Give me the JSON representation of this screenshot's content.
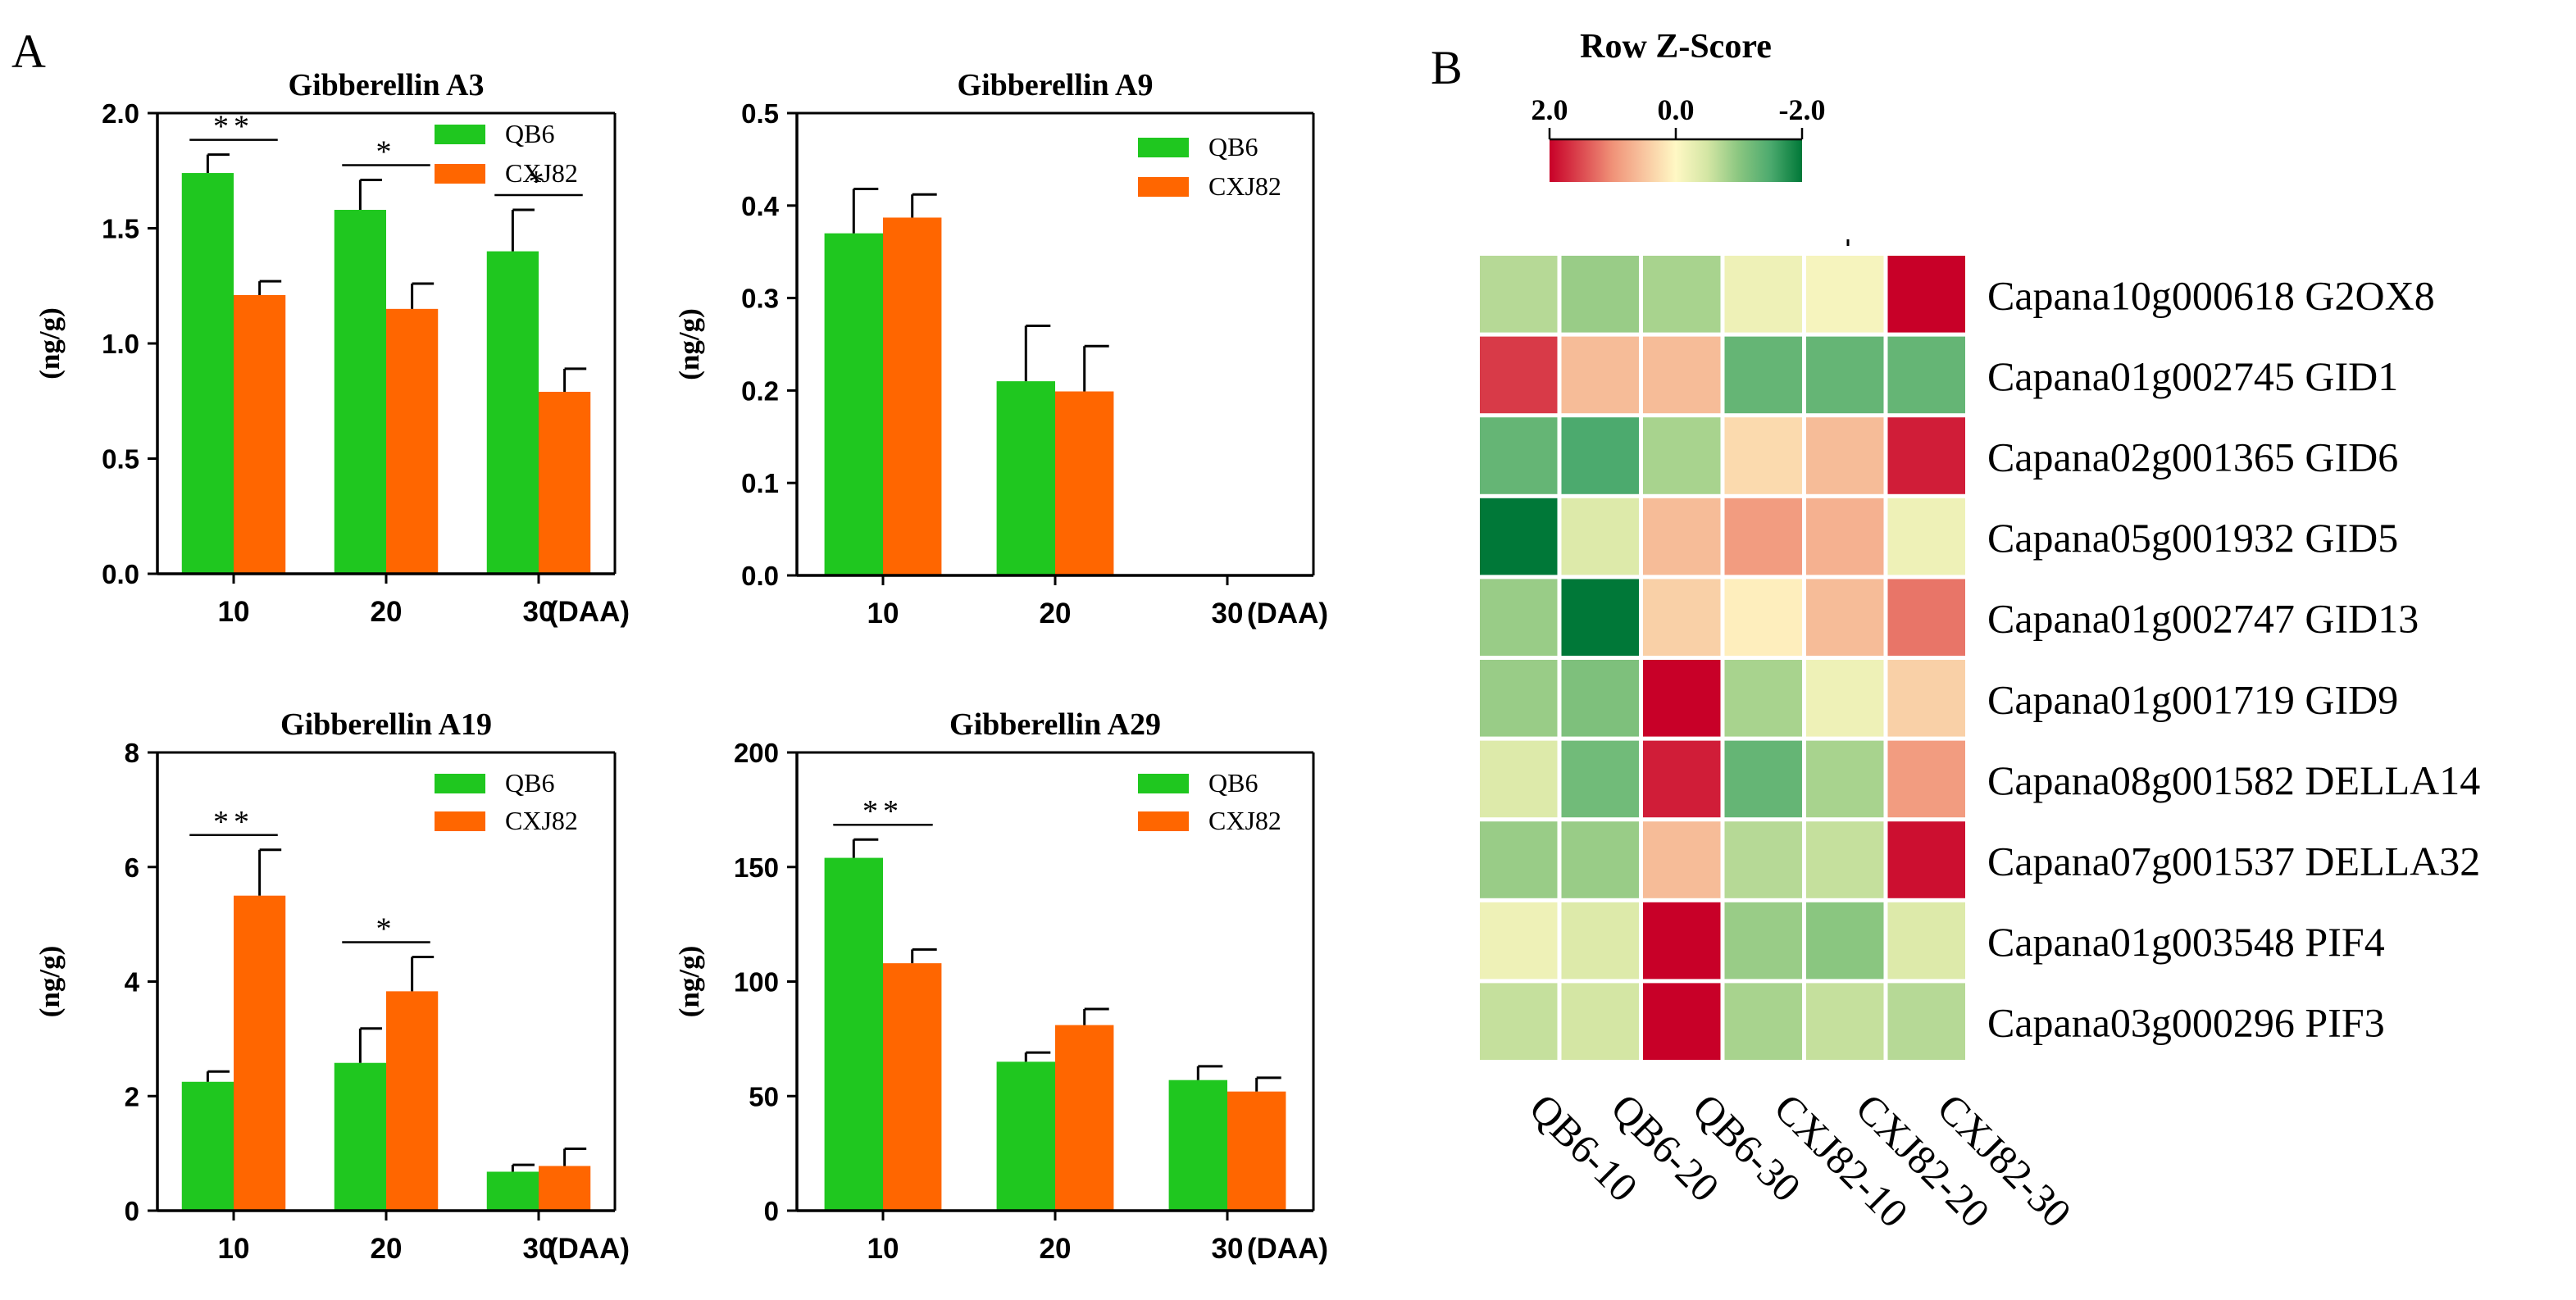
{
  "panel_labels": {
    "a": "A",
    "b": "B"
  },
  "colors": {
    "qb6": "#1fc71f",
    "cxj82": "#ff6600",
    "axis": "#000000"
  },
  "chart_data": [
    {
      "type": "bar",
      "title": "Gibberellin A3",
      "ylabel": "(ng/g)",
      "xlabel": "(DAA)",
      "categories": [
        "10",
        "20",
        "30"
      ],
      "ylim": [
        0,
        2.0
      ],
      "yticks": [
        "0.0",
        "0.5",
        "1.0",
        "1.5",
        "2.0"
      ],
      "legend_position": "top-right",
      "series": [
        {
          "name": "QB6",
          "values": [
            1.74,
            1.58,
            1.4
          ],
          "errors": [
            0.08,
            0.13,
            0.18
          ]
        },
        {
          "name": "CXJ82",
          "values": [
            1.21,
            1.15,
            0.79
          ],
          "errors": [
            0.06,
            0.11,
            0.1
          ]
        }
      ],
      "significance": [
        "**",
        "*",
        "*"
      ]
    },
    {
      "type": "bar",
      "title": "Gibberellin A9",
      "ylabel": "(ng/g)",
      "xlabel": "(DAA)",
      "categories": [
        "10",
        "20",
        "30"
      ],
      "ylim": [
        0,
        0.5
      ],
      "yticks": [
        "0.0",
        "0.1",
        "0.2",
        "0.3",
        "0.4",
        "0.5"
      ],
      "legend_position": "top-right",
      "series": [
        {
          "name": "QB6",
          "values": [
            0.37,
            0.21,
            0
          ],
          "errors": [
            0.048,
            0.06,
            0
          ]
        },
        {
          "name": "CXJ82",
          "values": [
            0.387,
            0.199,
            0
          ],
          "errors": [
            0.025,
            0.049,
            0
          ]
        }
      ],
      "significance": [
        "",
        "",
        ""
      ]
    },
    {
      "type": "bar",
      "title": "Gibberellin A19",
      "ylabel": "(ng/g)",
      "xlabel": "(DAA)",
      "categories": [
        "10",
        "20",
        "30"
      ],
      "ylim": [
        0,
        8
      ],
      "yticks": [
        "0",
        "2",
        "4",
        "6",
        "8"
      ],
      "legend_position": "top-right",
      "series": [
        {
          "name": "QB6",
          "values": [
            2.25,
            2.58,
            0.68
          ],
          "errors": [
            0.18,
            0.6,
            0.12
          ]
        },
        {
          "name": "CXJ82",
          "values": [
            5.5,
            3.83,
            0.78
          ],
          "errors": [
            0.8,
            0.6,
            0.3
          ]
        }
      ],
      "significance": [
        "**",
        "*",
        ""
      ]
    },
    {
      "type": "bar",
      "title": "Gibberellin A29",
      "ylabel": "(ng/g)",
      "xlabel": "(DAA)",
      "categories": [
        "10",
        "20",
        "30"
      ],
      "ylim": [
        0,
        200
      ],
      "yticks": [
        "0",
        "50",
        "100",
        "150",
        "200"
      ],
      "legend_position": "top-right",
      "series": [
        {
          "name": "QB6",
          "values": [
            154,
            65,
            57
          ],
          "errors": [
            8,
            4,
            6
          ]
        },
        {
          "name": "CXJ82",
          "values": [
            108,
            81,
            52
          ],
          "errors": [
            6,
            7,
            6
          ]
        }
      ],
      "significance": [
        "**",
        "",
        ""
      ]
    },
    {
      "type": "heatmap",
      "legend_title": "Row Z-Score",
      "legend_ticks": [
        "2.0",
        "0.0",
        "-2.0"
      ],
      "legend_range": [
        2.0,
        -2.0
      ],
      "columns": [
        "QB6-10",
        "QB6-20",
        "QB6-30",
        "CXJ82-10",
        "CXJ82-20",
        "CXJ82-30"
      ],
      "rows": [
        "Capana10g000618 G2OX8",
        "Capana01g002745 GID1",
        "Capana02g001365 GID6",
        "Capana05g001932 GID5",
        "Capana01g002747 GID13",
        "Capana01g001719 GID9",
        "Capana08g001582 DELLA14",
        "Capana07g001537 DELLA32",
        "Capana01g003548 PIF4",
        "Capana03g000296 PIF3"
      ],
      "values": [
        [
          -0.7,
          -0.9,
          -0.8,
          -0.2,
          -0.1,
          2.0
        ],
        [
          1.6,
          0.6,
          0.6,
          -1.3,
          -1.3,
          -1.3
        ],
        [
          -1.3,
          -1.5,
          -0.8,
          0.3,
          0.6,
          1.8
        ],
        [
          -2.0,
          -0.4,
          0.6,
          0.9,
          0.7,
          -0.2
        ],
        [
          -0.9,
          -2.0,
          0.4,
          0.1,
          0.6,
          1.2
        ],
        [
          -0.9,
          -1.1,
          2.0,
          -0.8,
          -0.2,
          0.4
        ],
        [
          -0.4,
          -1.2,
          1.8,
          -1.3,
          -0.8,
          0.9
        ],
        [
          -0.9,
          -0.9,
          0.6,
          -0.7,
          -0.6,
          1.9
        ],
        [
          -0.2,
          -0.4,
          2.0,
          -0.9,
          -1.0,
          -0.4
        ],
        [
          -0.6,
          -0.5,
          2.0,
          -0.8,
          -0.6,
          -0.7
        ]
      ]
    }
  ]
}
